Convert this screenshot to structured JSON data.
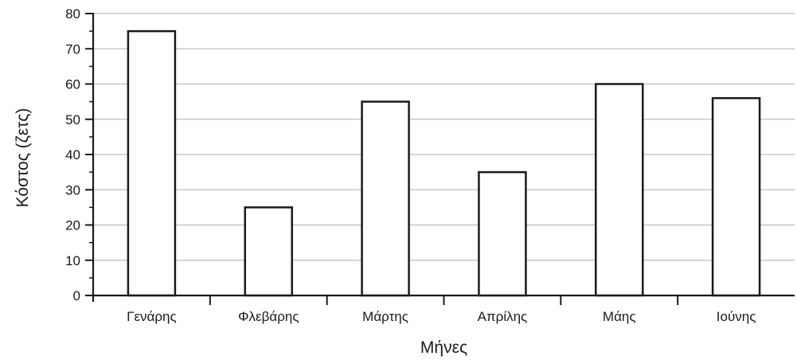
{
  "chart_data": {
    "type": "bar",
    "title": "",
    "xlabel": "Μήνες",
    "ylabel": "Κόστος (ζετς)",
    "categories": [
      "Γενάρης",
      "Φλεβάρης",
      "Μάρτης",
      "Απρίλης",
      "Μάης",
      "Ιούνης"
    ],
    "values": [
      75,
      25,
      55,
      35,
      60,
      56
    ],
    "ylim": [
      0,
      80
    ],
    "yticks": [
      0,
      10,
      20,
      30,
      40,
      50,
      60,
      70,
      80
    ],
    "grid": true,
    "legend": "none",
    "colors": {
      "bar_fill": "#ffffff",
      "bar_stroke": "#1a1a1a",
      "grid": "#bdbdbd",
      "axis": "#1a1a1a"
    }
  }
}
